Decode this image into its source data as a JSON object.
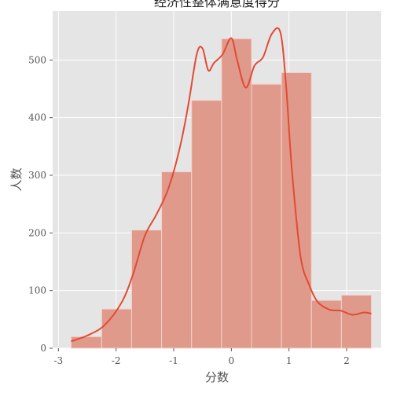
{
  "chart_data": {
    "type": "bar",
    "title": "经济性整体满意度得分",
    "xlabel": "分数",
    "ylabel": "人数",
    "xlim": [
      -3.1,
      2.6
    ],
    "ylim": [
      0,
      585
    ],
    "xticks": [
      -3,
      -2,
      -1,
      0,
      1,
      2
    ],
    "yticks": [
      0,
      100,
      200,
      300,
      400,
      500
    ],
    "xtick_labels": [
      "-3",
      "-2",
      "-1",
      "0",
      "1",
      "2"
    ],
    "ytick_labels": [
      "0",
      "100",
      "200",
      "300",
      "400",
      "500"
    ],
    "bins": [
      {
        "x0": -2.78,
        "x1": -2.25,
        "count": 20
      },
      {
        "x0": -2.25,
        "x1": -1.73,
        "count": 68
      },
      {
        "x0": -1.73,
        "x1": -1.21,
        "count": 205
      },
      {
        "x0": -1.21,
        "x1": -0.69,
        "count": 306
      },
      {
        "x0": -0.69,
        "x1": -0.17,
        "count": 430
      },
      {
        "x0": -0.17,
        "x1": 0.35,
        "count": 537
      },
      {
        "x0": 0.35,
        "x1": 0.87,
        "count": 458
      },
      {
        "x0": 0.87,
        "x1": 1.39,
        "count": 478
      },
      {
        "x0": 1.39,
        "x1": 1.91,
        "count": 83
      },
      {
        "x0": 1.91,
        "x1": 2.43,
        "count": 92
      }
    ],
    "kde": {
      "x": [
        -2.78,
        -2.5,
        -2.2,
        -1.9,
        -1.7,
        -1.5,
        -1.3,
        -1.1,
        -0.9,
        -0.75,
        -0.6,
        -0.5,
        -0.4,
        -0.3,
        -0.15,
        0.0,
        0.1,
        0.25,
        0.4,
        0.55,
        0.7,
        0.85,
        0.95,
        1.05,
        1.2,
        1.35,
        1.5,
        1.7,
        1.9,
        2.1,
        2.3,
        2.43
      ],
      "y": [
        12,
        22,
        40,
        80,
        130,
        195,
        232,
        275,
        345,
        420,
        510,
        520,
        482,
        495,
        510,
        538,
        500,
        452,
        490,
        505,
        545,
        548,
        455,
        310,
        160,
        110,
        80,
        67,
        65,
        58,
        62,
        60
      ]
    },
    "colors": {
      "bar_fill": "#e09a8c",
      "bar_stroke": "#f3d3cc",
      "kde_line": "#e24a33",
      "plot_background": "#e5e5e5",
      "grid": "#ffffff"
    },
    "grid": true,
    "legend": false
  }
}
